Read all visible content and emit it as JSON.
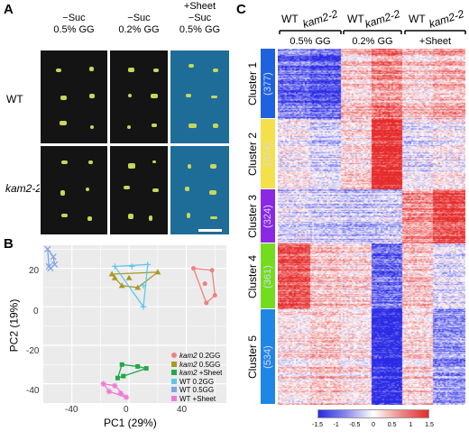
{
  "panelA": {
    "label": "A",
    "columns": [
      {
        "line1": "−Suc",
        "line2": "0.5% GG",
        "line3": ""
      },
      {
        "line1": "−Suc",
        "line2": "0.2% GG",
        "line3": ""
      },
      {
        "line1": "+Sheet",
        "line2": "−Suc",
        "line3": "0.5% GG"
      }
    ],
    "rows": [
      "WT",
      "kam2-2"
    ]
  },
  "panelB": {
    "label": "B",
    "xlabel": "PC1 (29%)",
    "ylabel": "PC2 (19%)",
    "xticks": [
      "-40",
      "0",
      "40"
    ],
    "yticks": [
      "20",
      "0",
      "-20",
      "-40"
    ],
    "legend": [
      {
        "it": "kam2",
        "rest": " 0.2GG",
        "color": "#f08080",
        "marker": "circle"
      },
      {
        "it": "kam2",
        "rest": " 0.5GG",
        "color": "#a79a27",
        "marker": "triangle"
      },
      {
        "it": "kam2",
        "rest": " +Sheet",
        "color": "#22a84a",
        "marker": "square"
      },
      {
        "it": "",
        "rest": "WT 0.2GG",
        "color": "#5ec8ea",
        "marker": "plus"
      },
      {
        "it": "",
        "rest": "WT 0.5GG",
        "color": "#7ea4e8",
        "marker": "cross"
      },
      {
        "it": "",
        "rest": "WT +Sheet",
        "color": "#f178d4",
        "marker": "asterisk"
      }
    ]
  },
  "panelC": {
    "label": "C",
    "top_labels": [
      "WT",
      "kam2-2",
      "WT",
      "kam2-2",
      "WT",
      "kam2-2"
    ],
    "groups": [
      "0.5% GG",
      "0.2% GG",
      "+Sheet"
    ],
    "clusters": [
      {
        "name": "Cluster 1",
        "count": "(377)",
        "color": "#1f62e0"
      },
      {
        "name": "Cluster 2",
        "count": "(374)",
        "color": "#f4e04a"
      },
      {
        "name": "Cluster 3",
        "count": "(324)",
        "color": "#8b28e6"
      },
      {
        "name": "Cluster 4",
        "count": "(361)",
        "color": "#74dc1e"
      },
      {
        "name": "Cluster 5",
        "count": "(534)",
        "color": "#1f86e8"
      }
    ],
    "colorbar_ticks": [
      "-1.5",
      "-1",
      "-0.5",
      "0",
      "0.5",
      "1",
      "1.5"
    ]
  },
  "chart_data": [
    {
      "type": "scatter",
      "title": "",
      "xlabel": "PC1 (29%)",
      "ylabel": "PC2 (19%)",
      "xlim": [
        -60,
        68
      ],
      "ylim": [
        -50,
        32
      ],
      "series": [
        {
          "name": "kam2 0.2GG",
          "points": [
            [
              45,
              20
            ],
            [
              58,
              19
            ],
            [
              53,
              12
            ],
            [
              60,
              6
            ],
            [
              54,
              2
            ]
          ]
        },
        {
          "name": "kam2 0.5GG",
          "points": [
            [
              -12,
              17
            ],
            [
              0,
              15
            ],
            [
              20,
              18
            ],
            [
              -5,
              11
            ],
            [
              6,
              10
            ],
            [
              -10,
              15
            ]
          ]
        },
        {
          "name": "kam2 +Sheet",
          "points": [
            [
              -8,
              -37
            ],
            [
              -5,
              -30
            ],
            [
              6,
              -31
            ],
            [
              12,
              -32
            ],
            [
              -4,
              -36
            ]
          ]
        },
        {
          "name": "WT 0.2GG",
          "points": [
            [
              -10,
              21
            ],
            [
              2,
              21
            ],
            [
              13,
              22
            ],
            [
              10,
              11
            ],
            [
              10,
              0
            ]
          ]
        },
        {
          "name": "WT 0.5GG",
          "points": [
            [
              -57,
              30
            ],
            [
              -53,
              26
            ],
            [
              -52,
              22
            ],
            [
              -55,
              20
            ],
            [
              -56,
              21
            ]
          ]
        },
        {
          "name": "WT +Sheet",
          "points": [
            [
              -18,
              -40
            ],
            [
              -10,
              -41
            ],
            [
              -2,
              -47
            ],
            [
              -14,
              -44
            ],
            [
              -6,
              -45
            ]
          ]
        }
      ]
    },
    {
      "type": "heatmap",
      "title": "",
      "columns": [
        "WT 0.5% GG",
        "kam2-2 0.5% GG",
        "WT 0.2% GG",
        "kam2-2 0.2% GG",
        "WT +Sheet",
        "kam2-2 +Sheet"
      ],
      "rows": [
        "Cluster 1",
        "Cluster 2",
        "Cluster 3",
        "Cluster 4",
        "Cluster 5"
      ],
      "values": [
        [
          -1.0,
          -1.2,
          0.3,
          0.8,
          0.3,
          0.5
        ],
        [
          0.0,
          -0.3,
          0.2,
          1.5,
          -0.2,
          0.0
        ],
        [
          -0.2,
          -0.3,
          -0.4,
          -0.3,
          0.8,
          1.3
        ],
        [
          1.2,
          0.4,
          0.3,
          -1.0,
          0.4,
          -0.2
        ],
        [
          0.2,
          0.4,
          0.2,
          -1.5,
          0.3,
          -0.7
        ]
      ],
      "colorbar_range": [
        -1.5,
        1.5
      ]
    }
  ]
}
